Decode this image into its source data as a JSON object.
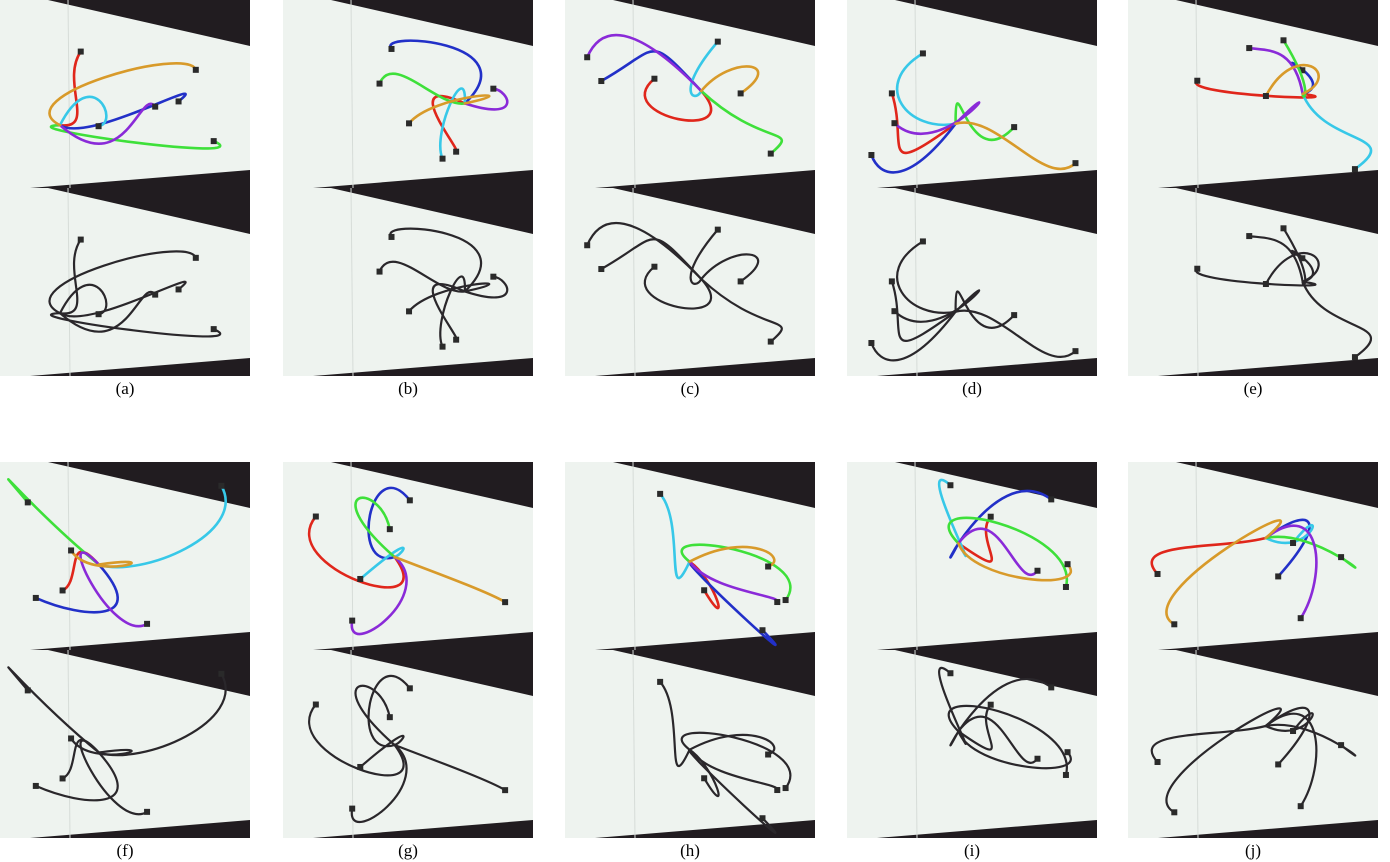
{
  "figure": {
    "panels": [
      {
        "label": "(a)"
      },
      {
        "label": "(b)"
      },
      {
        "label": "(c)"
      },
      {
        "label": "(d)"
      },
      {
        "label": "(e)"
      },
      {
        "label": "(f)"
      },
      {
        "label": "(g)"
      },
      {
        "label": "(h)"
      },
      {
        "label": "(i)"
      },
      {
        "label": "(j)"
      }
    ]
  }
}
